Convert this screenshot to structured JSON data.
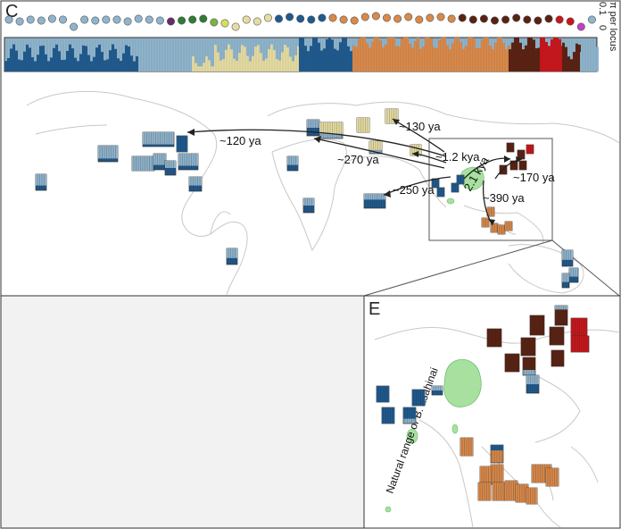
{
  "panels": {
    "top_letter": "C",
    "bottom_right_letter": "E"
  },
  "side_axis": {
    "label": "π per locus",
    "ticks": [
      "0.1",
      "0"
    ]
  },
  "colors": {
    "light_blue": "#8fb4cc",
    "dark_blue": "#1f5a8f",
    "tan": "#e6dca2",
    "orange": "#d9894a",
    "dark_brown": "#5a2212",
    "red": "#c8161c",
    "magenta": "#c040c8",
    "green_range": "#a8e0a0",
    "map_line": "#c8c8c8"
  },
  "arrow_labels": [
    "~120 ya",
    "~270 ya",
    "~130 ya",
    "~1.2 kya",
    "~250 ya",
    "2.1 kya",
    "~170 ya",
    "~390 ya"
  ],
  "inset_label": "Natural range of B. asahinai"
}
